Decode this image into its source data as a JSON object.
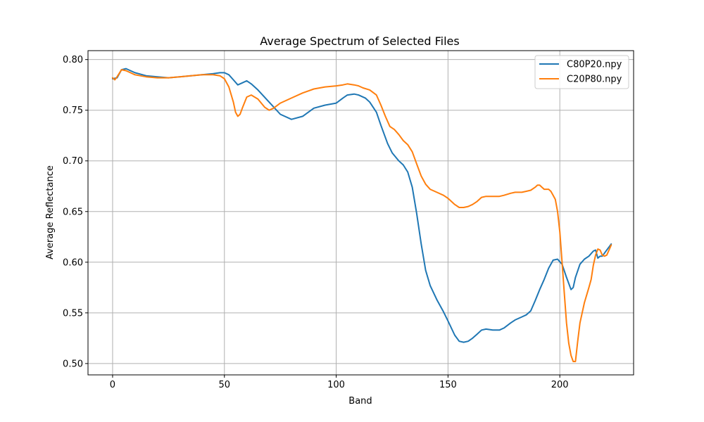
{
  "chart_data": {
    "type": "line",
    "title": "Average Spectrum of Selected Files",
    "xlabel": "Band",
    "ylabel": "Average Reflectance",
    "xlim": [
      -11,
      233
    ],
    "ylim": [
      0.4888,
      0.8088
    ],
    "xticks": [
      0,
      50,
      100,
      150,
      200
    ],
    "xtick_labels": [
      "0",
      "50",
      "100",
      "150",
      "200"
    ],
    "yticks": [
      0.5,
      0.55,
      0.6,
      0.65,
      0.7,
      0.75,
      0.8
    ],
    "ytick_labels": [
      "0.50",
      "0.55",
      "0.60",
      "0.65",
      "0.70",
      "0.75",
      "0.80"
    ],
    "grid": true,
    "legend_position": "top-right",
    "series": [
      {
        "name": "C80P20.npy",
        "color": "#1f77b4",
        "x": [
          0,
          2,
          4,
          6,
          8,
          10,
          15,
          20,
          25,
          30,
          35,
          40,
          45,
          48,
          50,
          52,
          54,
          56,
          58,
          60,
          62,
          65,
          70,
          75,
          80,
          85,
          90,
          95,
          100,
          103,
          105,
          108,
          110,
          113,
          115,
          118,
          120,
          123,
          125,
          128,
          130,
          132,
          134,
          136,
          138,
          140,
          142,
          145,
          148,
          150,
          153,
          155,
          157,
          159,
          161,
          163,
          165,
          167,
          170,
          173,
          175,
          178,
          180,
          183,
          185,
          187,
          189,
          191,
          193,
          195,
          197,
          199,
          201,
          203,
          205,
          206,
          207,
          209,
          211,
          213,
          215,
          216,
          217,
          218,
          219,
          220,
          221,
          222,
          223
        ],
        "y": [
          0.781,
          0.782,
          0.79,
          0.791,
          0.789,
          0.787,
          0.784,
          0.783,
          0.782,
          0.783,
          0.784,
          0.785,
          0.786,
          0.787,
          0.787,
          0.785,
          0.78,
          0.775,
          0.777,
          0.779,
          0.776,
          0.77,
          0.758,
          0.746,
          0.741,
          0.744,
          0.752,
          0.755,
          0.757,
          0.762,
          0.765,
          0.766,
          0.765,
          0.762,
          0.758,
          0.748,
          0.735,
          0.717,
          0.708,
          0.7,
          0.696,
          0.689,
          0.674,
          0.648,
          0.618,
          0.592,
          0.577,
          0.563,
          0.551,
          0.542,
          0.528,
          0.522,
          0.521,
          0.522,
          0.525,
          0.529,
          0.533,
          0.534,
          0.533,
          0.533,
          0.535,
          0.54,
          0.543,
          0.546,
          0.548,
          0.552,
          0.562,
          0.573,
          0.583,
          0.594,
          0.602,
          0.603,
          0.598,
          0.585,
          0.573,
          0.575,
          0.585,
          0.598,
          0.603,
          0.606,
          0.611,
          0.612,
          0.604,
          0.606,
          0.606,
          0.609,
          0.612,
          0.615,
          0.618
        ]
      },
      {
        "name": "C20P80.npy",
        "color": "#ff7f0e",
        "x": [
          0,
          1,
          2,
          4,
          6,
          8,
          10,
          15,
          20,
          25,
          30,
          35,
          40,
          45,
          48,
          50,
          52,
          54,
          55,
          56,
          57,
          58,
          60,
          62,
          65,
          68,
          70,
          72,
          75,
          80,
          85,
          90,
          95,
          100,
          103,
          105,
          108,
          110,
          112,
          115,
          118,
          120,
          122,
          124,
          126,
          128,
          130,
          132,
          134,
          136,
          138,
          140,
          142,
          145,
          148,
          150,
          153,
          155,
          157,
          159,
          161,
          163,
          165,
          167,
          170,
          173,
          175,
          178,
          180,
          183,
          185,
          187,
          189,
          190,
          191,
          192,
          193,
          194,
          195,
          196,
          197,
          198,
          199,
          200,
          201,
          202,
          203,
          204,
          205,
          206,
          207,
          208,
          209,
          211,
          213,
          214,
          215,
          216,
          217,
          218,
          219,
          220,
          221,
          222,
          223
        ],
        "y": [
          0.782,
          0.78,
          0.783,
          0.79,
          0.789,
          0.787,
          0.785,
          0.783,
          0.782,
          0.782,
          0.783,
          0.784,
          0.785,
          0.785,
          0.784,
          0.781,
          0.773,
          0.758,
          0.748,
          0.744,
          0.746,
          0.752,
          0.763,
          0.765,
          0.761,
          0.753,
          0.75,
          0.752,
          0.757,
          0.762,
          0.767,
          0.771,
          0.773,
          0.774,
          0.775,
          0.776,
          0.775,
          0.774,
          0.772,
          0.77,
          0.765,
          0.755,
          0.744,
          0.734,
          0.731,
          0.726,
          0.72,
          0.716,
          0.709,
          0.697,
          0.685,
          0.677,
          0.672,
          0.669,
          0.666,
          0.663,
          0.657,
          0.654,
          0.654,
          0.655,
          0.657,
          0.66,
          0.664,
          0.665,
          0.665,
          0.665,
          0.666,
          0.668,
          0.669,
          0.669,
          0.67,
          0.671,
          0.674,
          0.676,
          0.676,
          0.674,
          0.672,
          0.672,
          0.672,
          0.67,
          0.666,
          0.662,
          0.65,
          0.63,
          0.6,
          0.57,
          0.54,
          0.52,
          0.508,
          0.502,
          0.502,
          0.522,
          0.54,
          0.56,
          0.575,
          0.583,
          0.597,
          0.607,
          0.613,
          0.612,
          0.607,
          0.606,
          0.607,
          0.612,
          0.617
        ]
      }
    ]
  }
}
